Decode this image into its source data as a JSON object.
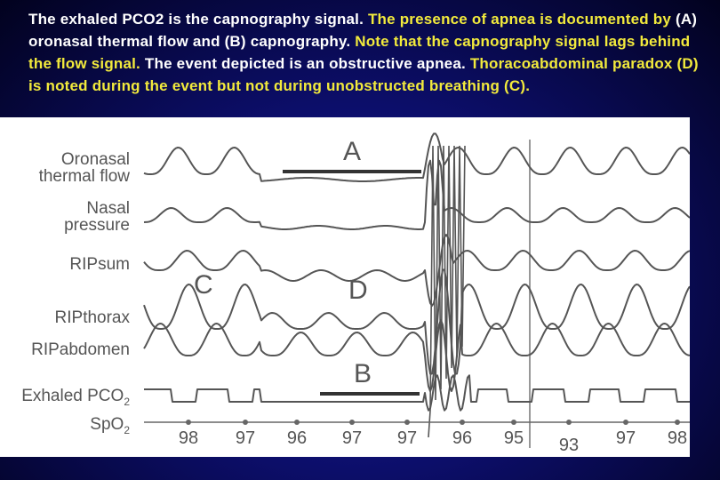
{
  "caption": {
    "part1": "The exhaled PCO2 is the capnography signal.",
    "part2": " The presence of apnea is documented by ",
    "part3": "(A) oronasal thermal flow and (B) capnography.",
    "part4": " Note that the capnography signal lags behind the flow signal. ",
    "part5": "The event depicted is an obstructive apnea.",
    "part6": " Thoracoabdominal paradox (D) is noted during the event but not during unobstructed breathing (C)."
  },
  "colors": {
    "caption_highlight": "#f2ea3c",
    "caption_text": "#ffffff",
    "trace": "#555555",
    "background": "#0c0e6a"
  },
  "chart_data": {
    "type": "line",
    "channels": [
      {
        "name_line1": "Oronasal",
        "name_line2": "thermal flow"
      },
      {
        "name_line1": "Nasal",
        "name_line2": "pressure"
      },
      {
        "name_line1": "RIPsum",
        "name_line2": ""
      },
      {
        "name_line1": "RIPthorax",
        "name_line2": ""
      },
      {
        "name_line1": "RIPabdomen",
        "name_line2": ""
      },
      {
        "name_line1": "Exhaled PCO",
        "name_sub": "2"
      },
      {
        "name_line1": "SpO",
        "name_sub": "2"
      }
    ],
    "annotations": {
      "A": "A",
      "B": "B",
      "C": "C",
      "D": "D"
    },
    "spo2_values": [
      98,
      97,
      96,
      97,
      97,
      96,
      95,
      93,
      97,
      98
    ]
  }
}
